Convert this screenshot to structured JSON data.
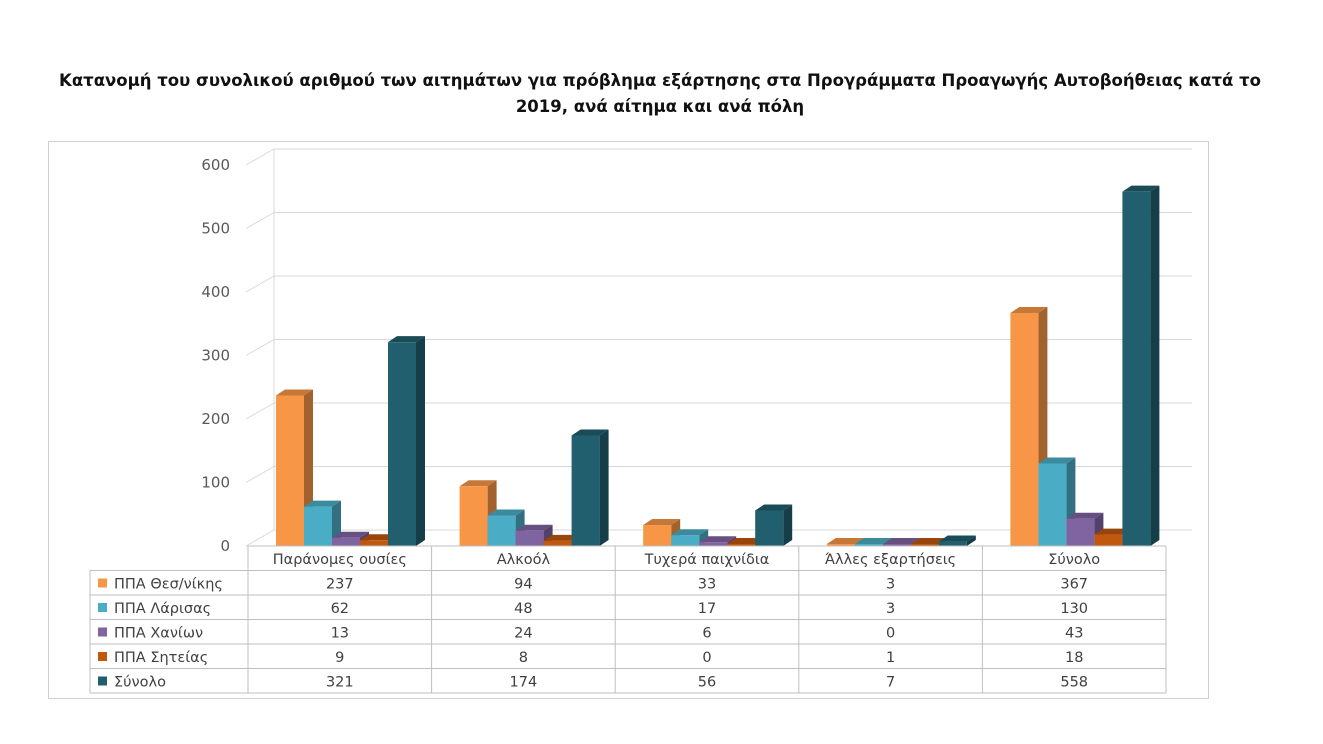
{
  "title": "Κατανομή του συνολικού αριθμού των αιτημάτων για πρόβλημα εξάρτησης στα Προγράμματα Προαγωγής Αυτοβοήθειας κατά το 2019, ανά αίτημα και ανά πόλη",
  "chart_data": {
    "type": "bar",
    "title": "Κατανομή του συνολικού αριθμού των αιτημάτων για πρόβλημα εξάρτησης στα Προγράμματα Προαγωγής Αυτοβοήθειας κατά το 2019, ανά αίτημα και ανά πόλη",
    "xlabel": "",
    "ylabel": "",
    "ylim": [
      0,
      600
    ],
    "yticks": [
      0,
      100,
      200,
      300,
      400,
      500,
      600
    ],
    "grid": true,
    "legend": "data-table-left",
    "categories": [
      "Παράνομες ουσίες",
      "Αλκοόλ",
      "Τυχερά παιχνίδια",
      "Άλλες εξαρτήσεις",
      "Σύνολο"
    ],
    "series": [
      {
        "name": "ΠΠΑ Θεσ/νίκης",
        "color": "#f79646",
        "values": [
          237,
          94,
          33,
          3,
          367
        ]
      },
      {
        "name": "ΠΠΑ Λάρισας",
        "color": "#4bacc6",
        "values": [
          62,
          48,
          17,
          3,
          130
        ]
      },
      {
        "name": "ΠΠΑ Χανίων",
        "color": "#8064a2",
        "values": [
          13,
          24,
          6,
          0,
          43
        ]
      },
      {
        "name": "ΠΠΑ Σητείας",
        "color": "#c0580e",
        "values": [
          9,
          8,
          0,
          1,
          18
        ]
      },
      {
        "name": "Σύνολο",
        "color": "#215f6e",
        "values": [
          321,
          174,
          56,
          7,
          558
        ]
      }
    ]
  }
}
